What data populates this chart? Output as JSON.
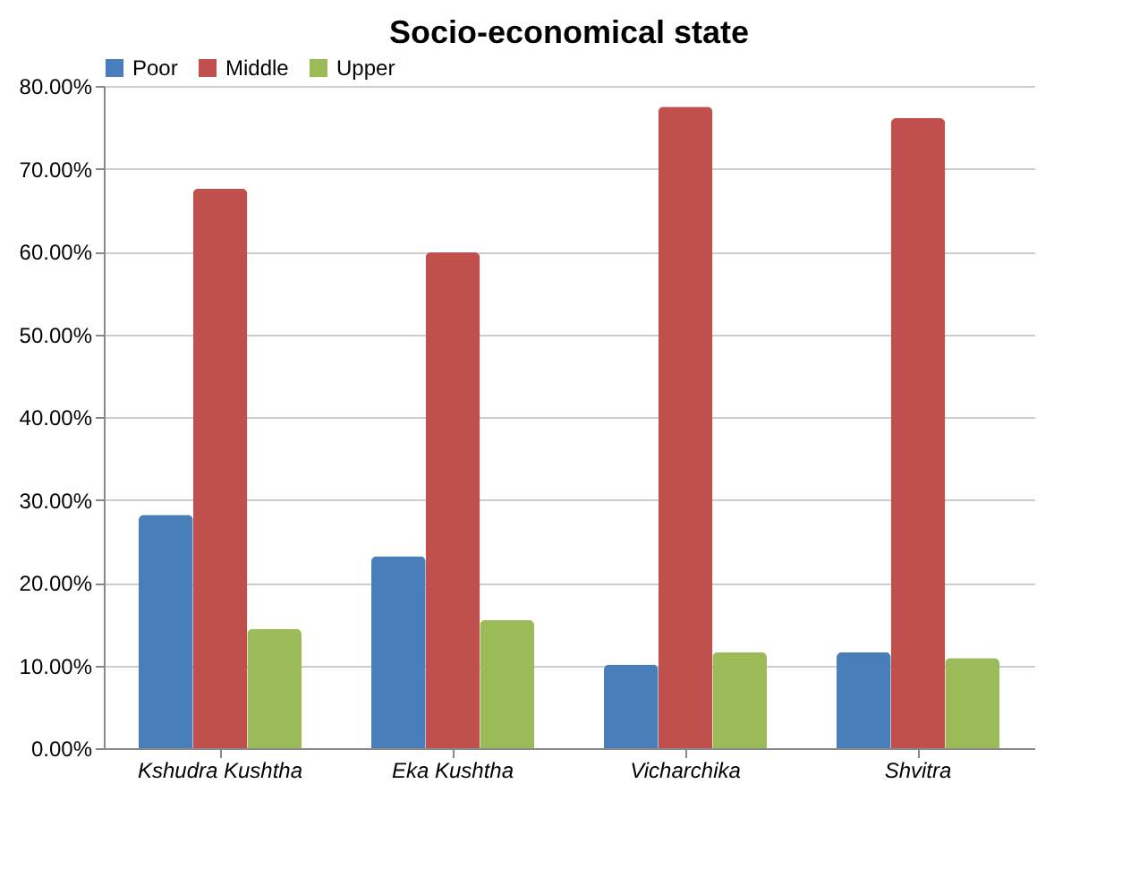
{
  "chart_data": {
    "type": "bar",
    "title": "Socio-economical state",
    "categories": [
      "Kshudra Kushtha",
      "Eka Kushtha",
      "Vicharchika",
      "Shvitra"
    ],
    "series": [
      {
        "name": "Poor",
        "color": "#4a7ebb",
        "values": [
          28.2,
          23.2,
          10.1,
          11.6
        ]
      },
      {
        "name": "Middle",
        "color": "#c0504d",
        "values": [
          67.6,
          59.9,
          77.5,
          76.1
        ]
      },
      {
        "name": "Upper",
        "color": "#9bbb59",
        "values": [
          14.4,
          15.5,
          11.6,
          10.9
        ]
      }
    ],
    "ylim": [
      0,
      80
    ],
    "yticks": [
      {
        "value": 0,
        "label": "0.00%"
      },
      {
        "value": 10,
        "label": "10.00%"
      },
      {
        "value": 20,
        "label": "20.00%"
      },
      {
        "value": 30,
        "label": "30.00%"
      },
      {
        "value": 40,
        "label": "40.00%"
      },
      {
        "value": 50,
        "label": "50.00%"
      },
      {
        "value": 60,
        "label": "60.00%"
      },
      {
        "value": 70,
        "label": "70.00%"
      },
      {
        "value": 80,
        "label": "80.00%"
      }
    ],
    "grid": "y",
    "legend": "top"
  }
}
